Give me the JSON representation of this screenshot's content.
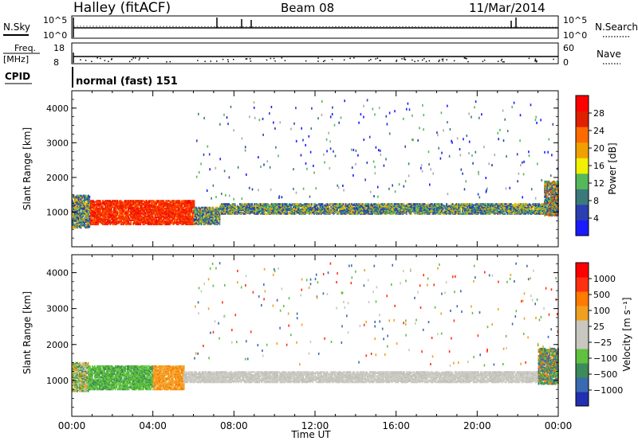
{
  "header": {
    "title": "Halley (fitACF)",
    "beam": "Beam 08",
    "date": "11/Mar/2014"
  },
  "panels": {
    "nsky": {
      "left_label": "N.Sky",
      "right_label": "N.Search",
      "left_ticks": [
        "10^5",
        "10^0"
      ],
      "right_ticks": [
        "10^5",
        "10^0"
      ]
    },
    "freq": {
      "left_label": "Freq.",
      "unit_label": "[MHz]",
      "right_label": "Nave",
      "left_ticks": [
        "18",
        "8"
      ],
      "right_ticks": [
        "60",
        "0"
      ]
    },
    "cpid": {
      "label": "CPID",
      "text": "normal (fast) 151"
    }
  },
  "chart_data": [
    {
      "type": "heatmap",
      "name": "power",
      "ylabel": "Slant Range [km]",
      "xlabel": "",
      "ylim": [
        0,
        4500
      ],
      "xlim_hours": [
        0,
        24
      ],
      "yticks": [
        "1000",
        "2000",
        "3000",
        "4000"
      ],
      "colorbar": {
        "label": "Power [dB]",
        "ticks": [
          "4",
          "8",
          "12",
          "16",
          "20",
          "24",
          "28"
        ],
        "colors": [
          "#1a1aff",
          "#2a3fb0",
          "#3a7a7a",
          "#55b85a",
          "#f0f000",
          "#f0a000",
          "#ff6a00",
          "#e02000",
          "#ff0000"
        ]
      },
      "regions": [
        {
          "t0": 0.0,
          "t1": 0.9,
          "r0": 550,
          "r1": 1500,
          "level": "med"
        },
        {
          "t0": 0.9,
          "t1": 6.0,
          "r0": 650,
          "r1": 1350,
          "level": "high"
        },
        {
          "t0": 6.0,
          "t1": 7.3,
          "r0": 650,
          "r1": 1150,
          "level": "med"
        },
        {
          "t0": 7.3,
          "t1": 23.3,
          "r0": 950,
          "r1": 1250,
          "level": "med"
        },
        {
          "t0": 23.3,
          "t1": 24.0,
          "r0": 900,
          "r1": 1900,
          "level": "mixed"
        }
      ]
    },
    {
      "type": "heatmap",
      "name": "velocity",
      "ylabel": "Slant Range [km]",
      "xlabel": "Time UT",
      "ylim": [
        0,
        4500
      ],
      "xlim_hours": [
        0,
        24
      ],
      "yticks": [
        "1000",
        "2000",
        "3000",
        "4000"
      ],
      "xticks": [
        "00:00",
        "04:00",
        "08:00",
        "12:00",
        "16:00",
        "20:00",
        "00:00"
      ],
      "colorbar": {
        "label": "Velocity [m s⁻¹]",
        "ticks": [
          "1000",
          "500",
          "100",
          "25",
          "−25",
          "−100",
          "−500",
          "−1000"
        ],
        "colors": [
          "#2030b0",
          "#3a6ab0",
          "#3d8a5a",
          "#60c040",
          "#c8c8c0",
          "#c8c8c0",
          "#f0a020",
          "#ff7a00",
          "#ff3010",
          "#ff0000"
        ]
      },
      "regions": [
        {
          "t0": 0.0,
          "t1": 0.8,
          "r0": 700,
          "r1": 1500,
          "level": "mixed"
        },
        {
          "t0": 0.8,
          "t1": 4.0,
          "r0": 750,
          "r1": 1400,
          "level": "green"
        },
        {
          "t0": 4.0,
          "t1": 5.5,
          "r0": 750,
          "r1": 1400,
          "level": "orange"
        },
        {
          "t0": 5.5,
          "t1": 23.0,
          "r0": 950,
          "r1": 1250,
          "level": "grey"
        },
        {
          "t0": 23.0,
          "t1": 24.0,
          "r0": 900,
          "r1": 1900,
          "level": "greenblue"
        }
      ]
    }
  ]
}
